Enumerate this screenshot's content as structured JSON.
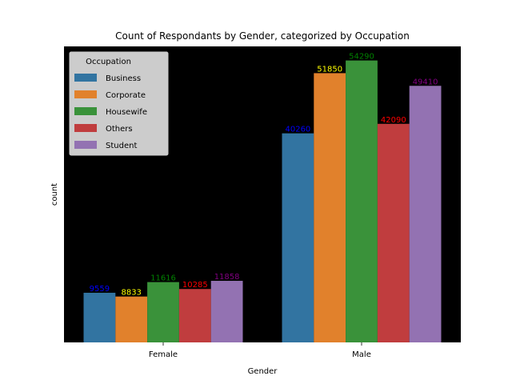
{
  "chart_data": {
    "type": "bar",
    "title": "Count of Respondants by Gender, categorized by Occupation",
    "xlabel": "Gender",
    "ylabel": "count",
    "categories": [
      "Female",
      "Male"
    ],
    "ylim": [
      0,
      57000
    ],
    "y_ticks_visible": false,
    "plot_background": "#000000",
    "legend": {
      "title": "Occupation",
      "placement": "upper-left"
    },
    "series": [
      {
        "name": "Business",
        "color": "#3274a1",
        "label_color": "#0000ff",
        "values": [
          9559,
          40260
        ]
      },
      {
        "name": "Corporate",
        "color": "#e1812c",
        "label_color": "#ffff00",
        "values": [
          8833,
          51850
        ]
      },
      {
        "name": "Housewife",
        "color": "#3a923a",
        "label_color": "#008000",
        "values": [
          11616,
          54290
        ]
      },
      {
        "name": "Others",
        "color": "#c03d3e",
        "label_color": "#ff0000",
        "values": [
          10285,
          42090
        ]
      },
      {
        "name": "Student",
        "color": "#9372b2",
        "label_color": "#800080",
        "values": [
          11858,
          49410
        ]
      }
    ]
  }
}
